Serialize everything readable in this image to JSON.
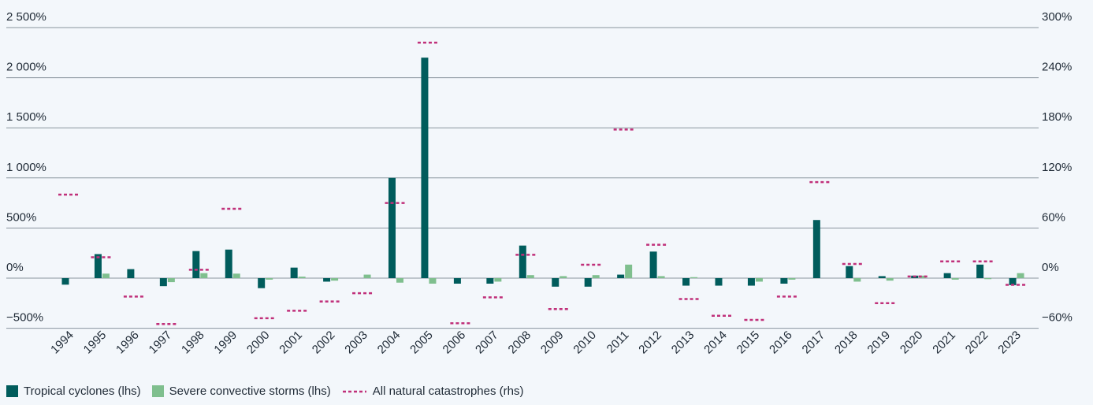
{
  "colors": {
    "tropical": "#005c5c",
    "severe": "#7fbf8e",
    "allcat": "#c0307a",
    "grid": "#8a959e",
    "background": "#f3f7fb"
  },
  "legend": {
    "tropical": "Tropical cyclones (lhs)",
    "severe": "Severe convective storms (lhs)",
    "allcat": "All natural catastrophes (rhs)"
  },
  "chart_data": {
    "type": "bar",
    "categories": [
      "1994",
      "1995",
      "1996",
      "1997",
      "1998",
      "1999",
      "2000",
      "2001",
      "2002",
      "2003",
      "2004",
      "2005",
      "2006",
      "2007",
      "2008",
      "2009",
      "2010",
      "2011",
      "2012",
      "2013",
      "2014",
      "2015",
      "2016",
      "2017",
      "2018",
      "2019",
      "2020",
      "2021",
      "2022",
      "2023"
    ],
    "left_axis": {
      "ylim": [
        -500,
        2500
      ],
      "ticks": [
        -500,
        0,
        500,
        1000,
        1500,
        2000,
        2500
      ],
      "tick_labels": [
        "−500%",
        "0%",
        "500%",
        "1 000%",
        "1 500%",
        "2 000%",
        "2 500%"
      ]
    },
    "right_axis": {
      "ylim": [
        -60,
        300
      ],
      "ticks": [
        -60,
        0,
        60,
        120,
        180,
        240,
        300
      ],
      "tick_labels": [
        "−60%",
        "0%",
        "60%",
        "120%",
        "180%",
        "240%",
        "300%"
      ]
    },
    "series": [
      {
        "name": "Tropical cyclones (lhs)",
        "type": "bar",
        "axis": "left",
        "values": [
          -65,
          240,
          90,
          -80,
          270,
          285,
          -100,
          105,
          -35,
          0,
          1000,
          2200,
          -55,
          -55,
          325,
          -85,
          -85,
          35,
          265,
          -75,
          -75,
          -75,
          -55,
          580,
          120,
          20,
          25,
          50,
          135,
          -70
        ]
      },
      {
        "name": "Severe convective storms (lhs)",
        "type": "bar",
        "axis": "left",
        "values": [
          0,
          45,
          0,
          -40,
          50,
          45,
          -15,
          15,
          -25,
          35,
          -45,
          -55,
          0,
          -35,
          30,
          20,
          30,
          135,
          20,
          10,
          0,
          -35,
          -15,
          0,
          -35,
          -25,
          25,
          -15,
          -10,
          50
        ]
      },
      {
        "name": "All natural catastrophes (rhs)",
        "type": "dash",
        "axis": "right",
        "values": [
          100,
          25,
          -22,
          -55,
          10,
          83,
          -48,
          -39,
          -28,
          -18,
          90,
          282,
          -54,
          -23,
          28,
          -37,
          16,
          178,
          40,
          -25,
          -45,
          -50,
          -22,
          115,
          17,
          -30,
          2,
          20,
          20,
          -8
        ]
      }
    ],
    "grid": true,
    "legend_position": "bottom-left"
  }
}
